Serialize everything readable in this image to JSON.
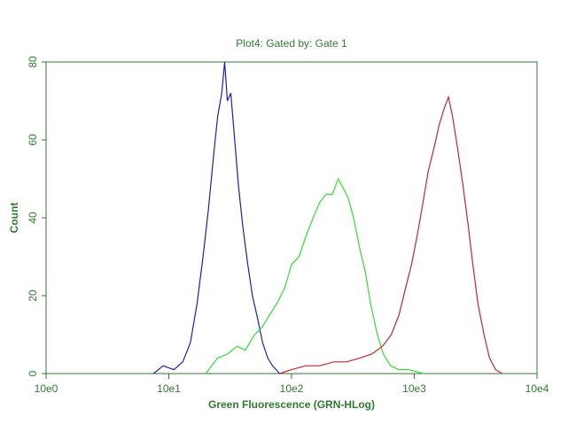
{
  "chart_data": {
    "type": "line",
    "title": "Plot4:  Gated by: Gate 1",
    "x_label": "Green Fluorescence (GRN-HLog)",
    "y_label": "Count",
    "xscale": "log",
    "xlim": [
      1,
      10000
    ],
    "xticks": [
      {
        "value": 1,
        "label": "10e0"
      },
      {
        "value": 10,
        "label": "10e1"
      },
      {
        "value": 100,
        "label": "10e2"
      },
      {
        "value": 1000,
        "label": "10e3"
      },
      {
        "value": 10000,
        "label": "10e4"
      }
    ],
    "ylim": [
      0,
      80
    ],
    "yticks": [
      0,
      20,
      40,
      60,
      80
    ],
    "axis_color": "#2f7a2f",
    "series": [
      {
        "color": "#1f1fa8",
        "x": [
          7.5,
          9,
          11,
          13,
          15,
          17,
          19,
          21,
          23,
          25,
          27,
          28.5,
          30,
          32,
          34,
          37,
          40,
          44,
          48,
          53,
          58,
          64,
          70,
          80
        ],
        "values": [
          0,
          2,
          1,
          3,
          8,
          18,
          30,
          42,
          55,
          66,
          72,
          80,
          70,
          72,
          62,
          48,
          38,
          28,
          20,
          14,
          8,
          4,
          2,
          0
        ]
      },
      {
        "color": "#33dd33",
        "x": [
          20,
          25,
          30,
          36,
          42,
          50,
          58,
          66,
          76,
          88,
          100,
          115,
          130,
          150,
          170,
          190,
          215,
          240,
          260,
          290,
          320,
          360,
          400,
          440,
          500,
          560,
          640,
          750,
          900,
          1200
        ],
        "values": [
          0,
          4,
          5,
          7,
          6,
          10,
          12,
          15,
          18,
          22,
          28,
          30,
          35,
          40,
          44,
          46,
          46,
          50,
          48,
          45,
          40,
          32,
          26,
          18,
          10,
          5,
          2,
          1,
          1,
          0
        ]
      },
      {
        "color": "#c0282a",
        "x": [
          80,
          100,
          130,
          170,
          220,
          280,
          360,
          450,
          550,
          650,
          750,
          850,
          950,
          1050,
          1150,
          1300,
          1450,
          1600,
          1750,
          1900,
          2050,
          2250,
          2500,
          2750,
          3000,
          3300,
          3700,
          4100,
          4600,
          5200
        ],
        "values": [
          0,
          1,
          2,
          2,
          3,
          3,
          4,
          5,
          7,
          10,
          15,
          22,
          28,
          35,
          42,
          52,
          58,
          64,
          68,
          71,
          66,
          58,
          48,
          38,
          28,
          18,
          10,
          4,
          1,
          0
        ]
      }
    ]
  }
}
